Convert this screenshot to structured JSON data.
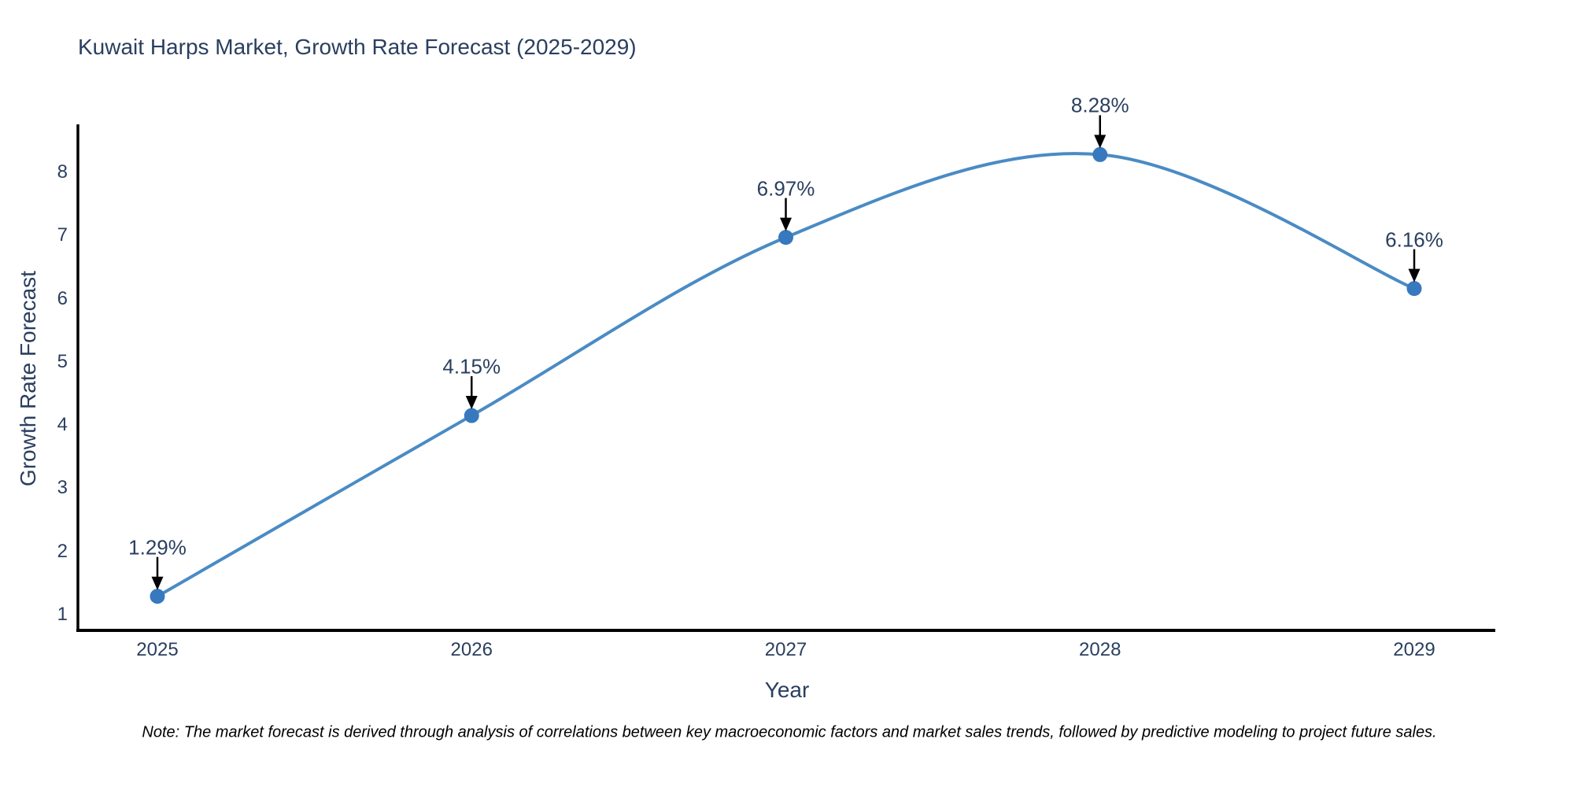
{
  "title": "Kuwait Harps Market, Growth Rate Forecast (2025-2029)",
  "note": "Note: The market forecast is derived through analysis of correlations between key macroeconomic factors and market sales trends, followed by predictive modeling to project future sales.",
  "chart_data": {
    "type": "line",
    "title": "Kuwait Harps Market, Growth Rate Forecast (2025-2029)",
    "x": [
      "2025",
      "2026",
      "2027",
      "2028",
      "2029"
    ],
    "series": [
      {
        "name": "Growth Rate Forecast",
        "values": [
          1.29,
          4.15,
          6.97,
          8.28,
          6.16
        ]
      }
    ],
    "point_labels": [
      "1.29%",
      "4.15%",
      "6.97%",
      "8.28%",
      "6.16%"
    ],
    "xlabel": "Year",
    "ylabel": "Growth Rate Forecast",
    "yticks": [
      "1",
      "2",
      "3",
      "4",
      "5",
      "6",
      "7",
      "8"
    ],
    "ylim": [
      0.7,
      8.8
    ],
    "line_shape": "spline",
    "grid": false,
    "legend_visible": false,
    "annotations_have_arrows": true,
    "colors": {
      "line": "#4a8bc4",
      "marker": "#3779be",
      "arrow": "#000000",
      "axis": "#000000",
      "text": "#2a3f5f",
      "note_text": "#000000"
    }
  }
}
